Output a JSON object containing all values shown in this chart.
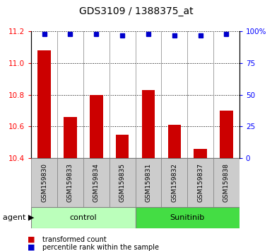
{
  "title": "GDS3109 / 1388375_at",
  "samples": [
    "GSM159830",
    "GSM159833",
    "GSM159834",
    "GSM159835",
    "GSM159831",
    "GSM159832",
    "GSM159837",
    "GSM159838"
  ],
  "bar_values": [
    11.08,
    10.66,
    10.8,
    10.55,
    10.83,
    10.61,
    10.46,
    10.7
  ],
  "percentile_values": [
    98,
    98,
    98,
    97,
    98,
    97,
    97,
    98
  ],
  "ylim_left": [
    10.4,
    11.2
  ],
  "ylim_right": [
    0,
    100
  ],
  "yticks_left": [
    10.4,
    10.6,
    10.8,
    11.0,
    11.2
  ],
  "yticks_right": [
    0,
    25,
    50,
    75,
    100
  ],
  "ytick_labels_right": [
    "0",
    "25",
    "50",
    "75",
    "100%"
  ],
  "groups": [
    {
      "label": "control",
      "start": 0,
      "end": 3,
      "color": "#bbffbb"
    },
    {
      "label": "Sunitinib",
      "start": 4,
      "end": 7,
      "color": "#44dd44"
    }
  ],
  "bar_color": "#cc0000",
  "percentile_color": "#0000cc",
  "bg_color": "#cccccc",
  "label_box_color": "#cccccc",
  "bar_width": 0.5,
  "title_fontsize": 10,
  "tick_fontsize": 7.5,
  "sample_fontsize": 6.5,
  "group_fontsize": 8,
  "legend_fontsize": 7,
  "agent_fontsize": 8
}
